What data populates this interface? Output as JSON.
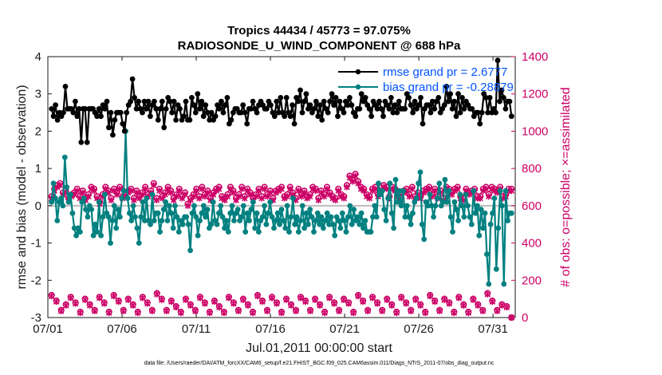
{
  "chart_data": {
    "type": "line",
    "title": "Tropics 44434 / 45773 = 97.075%",
    "subtitle": "RADIOSONDE_U_WIND_COMPONENT @ 688 hPa",
    "xlabel": "Jul.01,2011 00:00:00 start",
    "ylabel": "rmse and bias (model - observation)",
    "ylabel_right": "# of obs: o=possible; ×=assimilated",
    "footnote": "data file: /Users/raeder/DAI/ATM_forcXX/CAM6_setup/f.e21.FHIST_BGC.f09_025.CAM6assim.011/Diags_NTrS_2011-07/obs_diag_output.nc",
    "xlim": [
      0,
      31.5
    ],
    "ylim": [
      -3,
      4
    ],
    "ylim_right": [
      0,
      1400
    ],
    "x_ticks": [
      0,
      5,
      10,
      15,
      20,
      25,
      30
    ],
    "x_tick_labels": [
      "07/01",
      "07/06",
      "07/11",
      "07/16",
      "07/21",
      "07/26",
      "07/31"
    ],
    "y_ticks": [
      -3,
      -2,
      -1,
      0,
      1,
      2,
      3,
      4
    ],
    "y_tick_labels": [
      "-3",
      "-2",
      "-1",
      "0",
      "1",
      "2",
      "3",
      "4"
    ],
    "y2_ticks": [
      0,
      200,
      400,
      600,
      800,
      1000,
      1200,
      1400
    ],
    "y2_tick_labels": [
      "0",
      "200",
      "400",
      "600",
      "800",
      "1000",
      "1200",
      "1400"
    ],
    "legend_position": "top-right",
    "zero_line": true,
    "colors": {
      "rmse": "#000000",
      "bias": "#008080",
      "obs": "#cc0066",
      "zero": "#bbbbbb"
    },
    "series": [
      {
        "name": "rmse",
        "legend_label": "rmse grand pr = 2.6777",
        "values": [
          2.6,
          2.4,
          2.7,
          2.3,
          2.5,
          2.4,
          2.5,
          3.2,
          2.6,
          2.6,
          2.6,
          2.5,
          2.8,
          2.4,
          2.6,
          1.7,
          2.6,
          2.6,
          1.7,
          2.6,
          2.6,
          2.6,
          2.5,
          2.4,
          2.6,
          2.4,
          2.7,
          2.6,
          2.8,
          2.1,
          2.5,
          1.9,
          2.3,
          2.5,
          2.5,
          2.5,
          2.2,
          2.0,
          2.5,
          2.7,
          2.8,
          3.4,
          2.9,
          2.6,
          2.8,
          2.6,
          2.5,
          2.8,
          2.6,
          2.8,
          2.4,
          2.7,
          2.8,
          2.6,
          2.3,
          2.6,
          2.8,
          2.1,
          2.6,
          2.9,
          2.8,
          2.5,
          2.8,
          2.3,
          2.7,
          2.6,
          2.3,
          2.4,
          2.8,
          2.3,
          2.3,
          2.9,
          2.7,
          2.5,
          3.0,
          2.6,
          2.8,
          2.4,
          2.7,
          2.5,
          2.3,
          2.5,
          2.3,
          2.4,
          2.7,
          2.6,
          2.8,
          2.5,
          2.7,
          2.9,
          2.2,
          2.3,
          2.5,
          2.6,
          2.6,
          2.5,
          2.5,
          2.7,
          2.5,
          2.2,
          2.6,
          2.6,
          2.8,
          2.6,
          2.5,
          2.7,
          2.8,
          2.7,
          2.6,
          2.6,
          2.8,
          2.7,
          2.5,
          2.4,
          2.8,
          2.5,
          2.9,
          2.5,
          2.4,
          2.9,
          2.5,
          2.4,
          2.7,
          2.2,
          2.9,
          2.8,
          3.1,
          2.5,
          2.8,
          3.0,
          2.6,
          2.7,
          2.5,
          2.6,
          2.8,
          2.4,
          2.7,
          2.3,
          2.8,
          2.6,
          2.5,
          2.8,
          3.0,
          2.7,
          2.9,
          2.4,
          2.8,
          2.6,
          2.5,
          2.8,
          2.7,
          2.9,
          2.7,
          2.5,
          2.4,
          2.6,
          2.6,
          3.0,
          2.8,
          2.9,
          2.7,
          2.6,
          2.4,
          2.8,
          2.7,
          2.6,
          2.8,
          2.6,
          2.4,
          2.8,
          2.7,
          2.6,
          2.9,
          2.5,
          2.7,
          2.5,
          2.8,
          2.6,
          2.6,
          2.6,
          3.0,
          2.9,
          2.7,
          2.5,
          2.8,
          2.6,
          2.7,
          2.9,
          2.2,
          2.6,
          2.7,
          2.7,
          2.5,
          2.8,
          2.6,
          2.8,
          2.9,
          2.5,
          2.6,
          2.7,
          3.2,
          2.8,
          3.0,
          2.6,
          2.8,
          2.4,
          3.0,
          2.5,
          2.9,
          2.6,
          2.8,
          2.7,
          2.6,
          2.6,
          2.4,
          2.5,
          2.5,
          2.2,
          2.5,
          3.0,
          2.9,
          2.5,
          2.9,
          2.5,
          2.6,
          2.5,
          3.9,
          2.8,
          3.1,
          2.9,
          2.6,
          2.8,
          2.8,
          2.4
        ]
      },
      {
        "name": "bias",
        "legend_label": "bias grand pr = -0.28879",
        "values": [
          0.1,
          0.6,
          0.2,
          -0.4,
          0.1,
          0.2,
          0.0,
          1.3,
          0.5,
          0.1,
          0.3,
          -0.2,
          -0.6,
          -0.8,
          -0.6,
          -0.7,
          0.1,
          0.2,
          -0.1,
          -0.3,
          0.0,
          -0.1,
          -0.8,
          -0.5,
          -0.7,
          0.1,
          -0.8,
          -0.3,
          0.3,
          -0.2,
          -0.3,
          -1.0,
          -0.4,
          0.0,
          -0.6,
          -0.1,
          -0.3,
          0.2,
          0.4,
          2.0,
          0.2,
          -0.2,
          -0.4,
          0.0,
          -0.3,
          -0.6,
          -1.0,
          -0.3,
          0.1,
          -0.4,
          0.2,
          -0.4,
          -0.5,
          0.3,
          -0.4,
          -0.2,
          -0.2,
          -0.7,
          -0.4,
          -0.1,
          0.1,
          -0.4,
          0.0,
          -0.2,
          -0.6,
          0.0,
          -0.3,
          -0.7,
          -0.4,
          -0.5,
          -0.3,
          -0.3,
          -0.5,
          -1.2,
          -0.2,
          0.0,
          -0.3,
          -0.8,
          -0.4,
          -0.2,
          0.0,
          -0.3,
          -0.1,
          -0.6,
          -0.5,
          0.1,
          -0.4,
          -0.5,
          -0.2,
          0.0,
          -0.3,
          -0.6,
          -0.4,
          -0.7,
          -0.2,
          0.0,
          -0.4,
          -0.2,
          -0.1,
          -0.4,
          -0.3,
          0.0,
          -0.7,
          -0.2,
          -0.4,
          -0.1,
          0.1,
          -0.6,
          -0.2,
          -0.7,
          -0.4,
          -0.3,
          0.0,
          -0.5,
          -0.2,
          0.1,
          -0.3,
          -0.6,
          -0.4,
          -0.2,
          -0.5,
          -0.1,
          -0.4,
          -0.6,
          0.0,
          -0.7,
          -0.3,
          0.2,
          -0.5,
          -0.3,
          -0.7,
          -0.4,
          0.0,
          -0.6,
          -0.2,
          -0.5,
          -0.1,
          -0.3,
          -0.7,
          -0.4,
          -0.2,
          -0.5,
          -0.3,
          -0.6,
          -0.4,
          -0.2,
          -0.5,
          -0.3,
          -0.5,
          -0.8,
          -0.3,
          -0.4,
          -0.6,
          -0.2,
          -0.4,
          -0.7,
          -0.3,
          0.0,
          -0.5,
          -0.1,
          -0.4,
          -0.3,
          -0.5,
          -0.2,
          -0.6,
          -0.4,
          -0.7,
          -0.7,
          -0.7,
          -0.3,
          0.0,
          -0.3,
          0.6,
          0.3,
          0.4,
          -0.1,
          -0.4,
          0.2,
          0.6,
          -0.2,
          -0.6,
          0.7,
          0.1,
          0.4,
          0.0,
          0.4,
          -0.3,
          0.0,
          -0.3,
          -0.5,
          -0.2,
          0.1,
          0.2,
          0.6,
          0.9,
          -0.5,
          -0.9,
          0.1,
          0.0,
          0.3,
          0.0,
          -0.3,
          0.0,
          0.2,
          0.6,
          0.0,
          0.1,
          0.7,
          0.1,
          0.4,
          -0.3,
          -0.7,
          0.1,
          -0.1,
          -0.4,
          0.3,
          0.0,
          -0.3,
          0.3,
          0.0,
          -0.3,
          -0.5,
          0.4,
          -0.2,
          0.0,
          -0.8,
          -0.1,
          -0.6,
          -0.2,
          -1.3,
          -2.1,
          -0.5,
          -0.2,
          0.2,
          -1.7,
          -0.6,
          0.4,
          0.0,
          -2.1,
          0.4,
          -0.4,
          -0.2,
          -0.2
        ]
      },
      {
        "name": "obs_possible",
        "values": [
          650,
          690,
          710,
          720,
          670,
          680,
          640,
          660,
          670,
          690,
          650,
          680,
          640,
          660,
          700,
          690,
          650,
          620,
          660,
          700,
          680,
          640,
          690,
          670,
          700,
          650,
          660,
          680,
          690,
          640,
          680,
          650,
          670,
          700,
          660,
          680,
          720,
          640,
          690,
          650,
          670,
          700,
          680,
          640,
          660,
          690,
          650,
          670,
          610,
          640,
          660,
          690,
          650,
          700,
          660,
          680,
          640,
          670,
          690,
          700,
          650,
          640,
          660,
          700,
          680,
          640,
          660,
          700,
          650,
          690,
          670,
          640,
          660,
          690,
          650,
          700,
          660,
          680,
          640,
          680,
          690,
          700,
          650,
          660,
          700,
          670,
          640,
          690,
          660,
          680,
          650,
          660,
          700,
          690,
          640,
          680,
          660,
          700,
          670,
          650,
          640,
          690,
          660,
          650,
          710,
          760,
          740,
          770,
          730,
          700,
          690,
          660,
          650,
          690,
          700,
          660,
          680,
          710,
          700,
          650,
          700,
          690,
          660,
          640,
          680,
          690,
          660,
          700,
          650,
          670,
          650,
          680,
          690,
          700,
          660,
          690,
          650,
          680,
          640,
          700,
          690,
          670,
          690,
          700,
          650,
          640,
          690,
          670,
          680,
          690,
          650,
          650,
          690,
          700,
          660,
          700,
          690,
          680,
          700,
          650,
          660,
          690,
          690
        ]
      },
      {
        "name": "obs_assimilated",
        "values": [
          640,
          680,
          700,
          710,
          660,
          670,
          630,
          650,
          660,
          680,
          640,
          670,
          630,
          650,
          690,
          680,
          640,
          610,
          650,
          690,
          670,
          630,
          680,
          660,
          690,
          640,
          650,
          670,
          680,
          630,
          670,
          640,
          660,
          690,
          650,
          670,
          710,
          630,
          680,
          640,
          660,
          690,
          670,
          630,
          650,
          680,
          640,
          660,
          600,
          630,
          650,
          680,
          640,
          690,
          650,
          670,
          630,
          660,
          680,
          690,
          640,
          630,
          650,
          690,
          670,
          630,
          650,
          690,
          640,
          680,
          660,
          630,
          650,
          680,
          640,
          690,
          650,
          670,
          630,
          670,
          680,
          690,
          640,
          650,
          690,
          660,
          630,
          680,
          650,
          670,
          640,
          650,
          690,
          680,
          630,
          670,
          650,
          690,
          660,
          640,
          630,
          680,
          650,
          640,
          700,
          750,
          730,
          760,
          720,
          690,
          680,
          650,
          640,
          680,
          690,
          650,
          670,
          700,
          690,
          640,
          690,
          680,
          650,
          630,
          670,
          680,
          650,
          690,
          640,
          660,
          640,
          670,
          680,
          690,
          650,
          680,
          640,
          670,
          630,
          690,
          680,
          660,
          680,
          690,
          640,
          630,
          680,
          660,
          670,
          680,
          640,
          640,
          680,
          690,
          650,
          690,
          680,
          670,
          690,
          640,
          650,
          680,
          680
        ]
      },
      {
        "name": "obs_low_possible",
        "values": [
          120,
          90,
          40,
          70,
          110,
          80,
          30,
          100,
          70,
          40,
          110,
          80,
          30,
          120,
          90,
          40,
          100,
          70,
          30,
          110,
          80,
          40,
          130,
          100,
          40,
          90,
          60,
          30,
          100,
          70,
          40,
          110,
          80,
          30,
          90,
          60,
          30,
          110,
          80,
          40,
          100,
          70,
          30,
          120,
          90,
          40,
          110,
          80,
          30,
          100,
          70,
          40,
          110,
          90,
          40,
          100,
          70,
          30,
          110,
          80,
          40,
          100,
          80,
          30,
          120,
          90,
          40,
          110,
          80,
          40,
          100,
          70,
          30,
          110,
          80,
          40,
          100,
          70,
          30,
          120,
          90,
          40,
          100,
          80,
          30,
          110,
          70,
          30,
          100,
          70,
          40,
          130,
          90,
          40,
          70,
          60,
          0
        ]
      },
      {
        "name": "obs_low_assimilated",
        "values": [
          115,
          85,
          35,
          65,
          105,
          75,
          25,
          95,
          65,
          35,
          105,
          75,
          25,
          115,
          85,
          35,
          95,
          65,
          25,
          105,
          75,
          35,
          125,
          95,
          35,
          85,
          55,
          25,
          95,
          65,
          35,
          105,
          75,
          25,
          85,
          55,
          25,
          105,
          75,
          35,
          95,
          65,
          25,
          115,
          85,
          35,
          105,
          75,
          25,
          95,
          65,
          35,
          105,
          85,
          35,
          95,
          65,
          25,
          105,
          75,
          35,
          95,
          75,
          25,
          115,
          85,
          35,
          105,
          75,
          35,
          95,
          65,
          25,
          105,
          75,
          35,
          95,
          65,
          25,
          115,
          85,
          35,
          95,
          75,
          25,
          105,
          65,
          25,
          95,
          65,
          35,
          125,
          85,
          35,
          65,
          55,
          0
        ]
      }
    ]
  }
}
